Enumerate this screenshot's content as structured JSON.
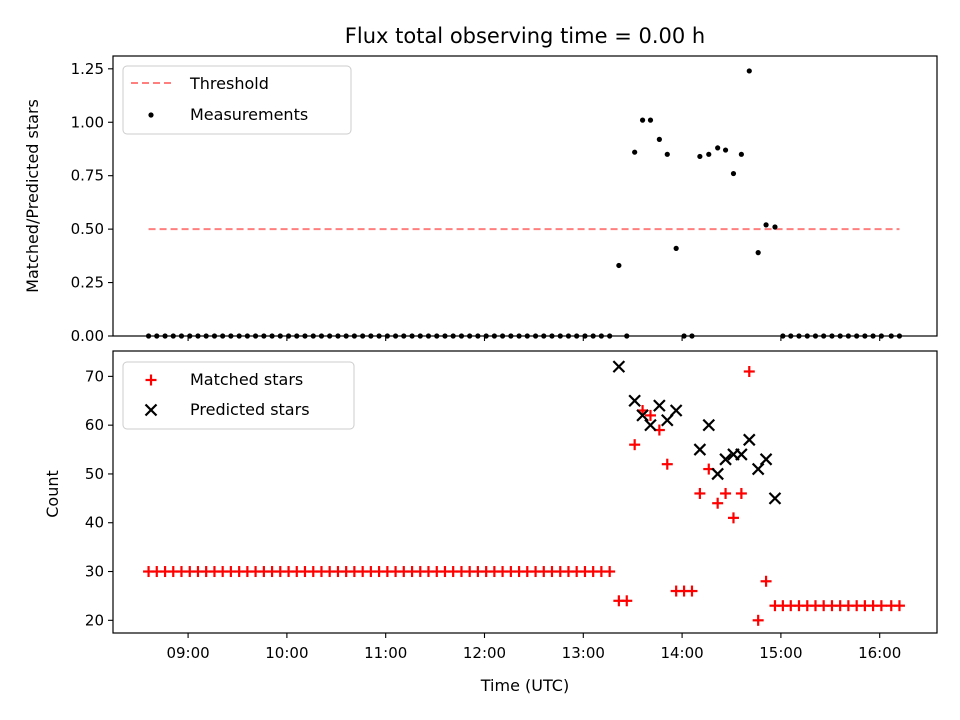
{
  "chart_data": [
    {
      "type": "scatter",
      "title": "Flux total observing time = 0.00 h",
      "xlabel": "",
      "ylabel": "Matched/Predicted stars",
      "ylim": [
        0,
        1.31
      ],
      "y_ticks": [
        "0.00",
        "0.25",
        "0.50",
        "0.75",
        "1.00",
        "1.25"
      ],
      "legend": {
        "position": "top-left",
        "entries": [
          "Threshold",
          "Measurements"
        ]
      },
      "threshold": {
        "name": "Threshold",
        "value": 0.5,
        "x_start": 8.6,
        "x_end": 16.2,
        "color": "#ff7f7f"
      },
      "series": [
        {
          "name": "Measurements",
          "points": [
            [
              8.6,
              0
            ],
            [
              8.683,
              0
            ],
            [
              8.767,
              0
            ],
            [
              8.85,
              0
            ],
            [
              8.933,
              0
            ],
            [
              9.017,
              0
            ],
            [
              9.1,
              0
            ],
            [
              9.183,
              0
            ],
            [
              9.267,
              0
            ],
            [
              9.35,
              0
            ],
            [
              9.433,
              0
            ],
            [
              9.517,
              0
            ],
            [
              9.6,
              0
            ],
            [
              9.683,
              0
            ],
            [
              9.767,
              0
            ],
            [
              9.85,
              0
            ],
            [
              9.933,
              0
            ],
            [
              10.017,
              0
            ],
            [
              10.1,
              0
            ],
            [
              10.183,
              0
            ],
            [
              10.267,
              0
            ],
            [
              10.35,
              0
            ],
            [
              10.433,
              0
            ],
            [
              10.517,
              0
            ],
            [
              10.6,
              0
            ],
            [
              10.683,
              0
            ],
            [
              10.767,
              0
            ],
            [
              10.85,
              0
            ],
            [
              10.933,
              0
            ],
            [
              11.017,
              0
            ],
            [
              11.1,
              0
            ],
            [
              11.183,
              0
            ],
            [
              11.267,
              0
            ],
            [
              11.35,
              0
            ],
            [
              11.433,
              0
            ],
            [
              11.517,
              0
            ],
            [
              11.6,
              0
            ],
            [
              11.683,
              0
            ],
            [
              11.767,
              0
            ],
            [
              11.85,
              0
            ],
            [
              11.933,
              0
            ],
            [
              12.017,
              0
            ],
            [
              12.1,
              0
            ],
            [
              12.183,
              0
            ],
            [
              12.267,
              0
            ],
            [
              12.35,
              0
            ],
            [
              12.433,
              0
            ],
            [
              12.517,
              0
            ],
            [
              12.6,
              0
            ],
            [
              12.683,
              0
            ],
            [
              12.767,
              0
            ],
            [
              12.85,
              0
            ],
            [
              12.933,
              0
            ],
            [
              13.017,
              0
            ],
            [
              13.1,
              0
            ],
            [
              13.183,
              0
            ],
            [
              13.267,
              0
            ],
            [
              13.36,
              0.33
            ],
            [
              13.44,
              0
            ],
            [
              13.52,
              0.86
            ],
            [
              13.6,
              1.01
            ],
            [
              13.68,
              1.01
            ],
            [
              13.77,
              0.92
            ],
            [
              13.85,
              0.85
            ],
            [
              13.94,
              0.41
            ],
            [
              14.02,
              0
            ],
            [
              14.1,
              0
            ],
            [
              14.18,
              0.84
            ],
            [
              14.27,
              0.85
            ],
            [
              14.36,
              0.88
            ],
            [
              14.44,
              0.87
            ],
            [
              14.52,
              0.76
            ],
            [
              14.6,
              0.85
            ],
            [
              14.68,
              1.24
            ],
            [
              14.77,
              0.39
            ],
            [
              14.85,
              0.52
            ],
            [
              14.94,
              0.51
            ],
            [
              15.02,
              0
            ],
            [
              15.1,
              0
            ],
            [
              15.183,
              0
            ],
            [
              15.267,
              0
            ],
            [
              15.35,
              0
            ],
            [
              15.433,
              0
            ],
            [
              15.517,
              0
            ],
            [
              15.6,
              0
            ],
            [
              15.683,
              0
            ],
            [
              15.767,
              0
            ],
            [
              15.85,
              0
            ],
            [
              15.933,
              0
            ],
            [
              16.017,
              0
            ],
            [
              16.117,
              0
            ],
            [
              16.2,
              0
            ]
          ]
        }
      ]
    },
    {
      "type": "scatter",
      "title": "",
      "xlabel": "Time (UTC)",
      "ylabel": "Count",
      "ylim": [
        17.4,
        75.2
      ],
      "xlim": [
        8.24,
        16.58
      ],
      "y_ticks": [
        "20",
        "30",
        "40",
        "50",
        "60",
        "70"
      ],
      "x_ticks": [
        {
          "value": 9,
          "label": "09:00"
        },
        {
          "value": 10,
          "label": "10:00"
        },
        {
          "value": 11,
          "label": "11:00"
        },
        {
          "value": 12,
          "label": "12:00"
        },
        {
          "value": 13,
          "label": "13:00"
        },
        {
          "value": 14,
          "label": "14:00"
        },
        {
          "value": 15,
          "label": "15:00"
        },
        {
          "value": 16,
          "label": "16:00"
        }
      ],
      "legend": {
        "position": "top-left",
        "entries": [
          "Matched stars",
          "Predicted stars"
        ]
      },
      "series": [
        {
          "name": "Matched stars",
          "marker": "plus",
          "color": "#ff0000",
          "points": [
            [
              8.6,
              30
            ],
            [
              8.683,
              30
            ],
            [
              8.767,
              30
            ],
            [
              8.85,
              30
            ],
            [
              8.933,
              30
            ],
            [
              9.017,
              30
            ],
            [
              9.1,
              30
            ],
            [
              9.183,
              30
            ],
            [
              9.267,
              30
            ],
            [
              9.35,
              30
            ],
            [
              9.433,
              30
            ],
            [
              9.517,
              30
            ],
            [
              9.6,
              30
            ],
            [
              9.683,
              30
            ],
            [
              9.767,
              30
            ],
            [
              9.85,
              30
            ],
            [
              9.933,
              30
            ],
            [
              10.017,
              30
            ],
            [
              10.1,
              30
            ],
            [
              10.183,
              30
            ],
            [
              10.267,
              30
            ],
            [
              10.35,
              30
            ],
            [
              10.433,
              30
            ],
            [
              10.517,
              30
            ],
            [
              10.6,
              30
            ],
            [
              10.683,
              30
            ],
            [
              10.767,
              30
            ],
            [
              10.85,
              30
            ],
            [
              10.933,
              30
            ],
            [
              11.017,
              30
            ],
            [
              11.1,
              30
            ],
            [
              11.183,
              30
            ],
            [
              11.267,
              30
            ],
            [
              11.35,
              30
            ],
            [
              11.433,
              30
            ],
            [
              11.517,
              30
            ],
            [
              11.6,
              30
            ],
            [
              11.683,
              30
            ],
            [
              11.767,
              30
            ],
            [
              11.85,
              30
            ],
            [
              11.933,
              30
            ],
            [
              12.017,
              30
            ],
            [
              12.1,
              30
            ],
            [
              12.183,
              30
            ],
            [
              12.267,
              30
            ],
            [
              12.35,
              30
            ],
            [
              12.433,
              30
            ],
            [
              12.517,
              30
            ],
            [
              12.6,
              30
            ],
            [
              12.683,
              30
            ],
            [
              12.767,
              30
            ],
            [
              12.85,
              30
            ],
            [
              12.933,
              30
            ],
            [
              13.017,
              30
            ],
            [
              13.1,
              30
            ],
            [
              13.183,
              30
            ],
            [
              13.267,
              30
            ],
            [
              13.36,
              24
            ],
            [
              13.44,
              24
            ],
            [
              13.52,
              56
            ],
            [
              13.6,
              63
            ],
            [
              13.68,
              62
            ],
            [
              13.77,
              59
            ],
            [
              13.85,
              52
            ],
            [
              13.94,
              26
            ],
            [
              14.02,
              26
            ],
            [
              14.1,
              26
            ],
            [
              14.18,
              46
            ],
            [
              14.27,
              51
            ],
            [
              14.36,
              44
            ],
            [
              14.44,
              46
            ],
            [
              14.52,
              41
            ],
            [
              14.6,
              46
            ],
            [
              14.68,
              71
            ],
            [
              14.77,
              20
            ],
            [
              14.85,
              28
            ],
            [
              14.94,
              23
            ],
            [
              15.02,
              23
            ],
            [
              15.1,
              23
            ],
            [
              15.183,
              23
            ],
            [
              15.267,
              23
            ],
            [
              15.35,
              23
            ],
            [
              15.433,
              23
            ],
            [
              15.517,
              23
            ],
            [
              15.6,
              23
            ],
            [
              15.683,
              23
            ],
            [
              15.767,
              23
            ],
            [
              15.85,
              23
            ],
            [
              15.933,
              23
            ],
            [
              16.017,
              23
            ],
            [
              16.117,
              23
            ],
            [
              16.2,
              23
            ]
          ]
        },
        {
          "name": "Predicted stars",
          "marker": "x",
          "color": "#000000",
          "points": [
            [
              13.36,
              72
            ],
            [
              13.52,
              65
            ],
            [
              13.6,
              62
            ],
            [
              13.68,
              60
            ],
            [
              13.77,
              64
            ],
            [
              13.85,
              61
            ],
            [
              13.94,
              63
            ],
            [
              14.18,
              55
            ],
            [
              14.27,
              60
            ],
            [
              14.36,
              50
            ],
            [
              14.44,
              53
            ],
            [
              14.52,
              54
            ],
            [
              14.6,
              54
            ],
            [
              14.68,
              57
            ],
            [
              14.77,
              51
            ],
            [
              14.85,
              53
            ],
            [
              14.94,
              45
            ]
          ]
        }
      ]
    }
  ]
}
